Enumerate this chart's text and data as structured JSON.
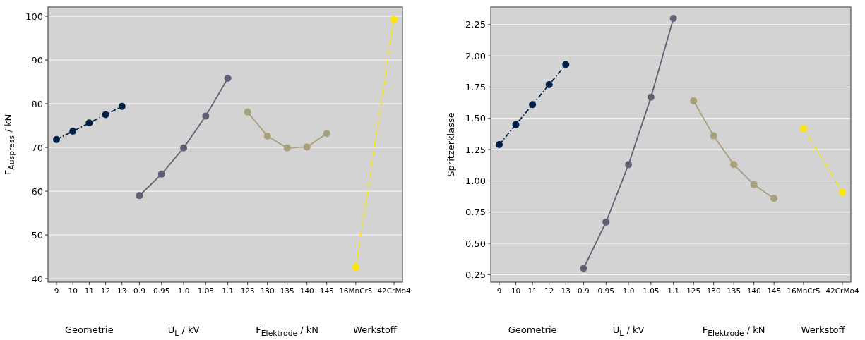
{
  "chart_data": [
    {
      "type": "line",
      "ylabel": "F$_{Auspress}$ / kN",
      "categories": [
        "9",
        "10",
        "11",
        "12",
        "13",
        "0.9",
        "0.95",
        "1.0",
        "1.05",
        "1.1",
        "125",
        "130",
        "135",
        "140",
        "145",
        "16MnCr5",
        "42CrMo4"
      ],
      "series": [
        {
          "color": "#002147",
          "line_style": "dashed",
          "values": [
            71.8,
            73.7,
            75.6,
            77.5,
            79.4,
            null,
            null,
            null,
            null,
            null,
            null,
            null,
            null,
            null,
            null,
            null,
            null
          ]
        },
        {
          "color": "#5f6275",
          "line_style": "solid",
          "values": [
            null,
            null,
            null,
            null,
            null,
            59.0,
            63.9,
            69.9,
            77.2,
            85.8,
            null,
            null,
            null,
            null,
            null,
            null,
            null
          ]
        },
        {
          "color": "#a99f7a",
          "line_style": "solid",
          "values": [
            null,
            null,
            null,
            null,
            null,
            null,
            null,
            null,
            null,
            null,
            78.1,
            72.6,
            69.9,
            70.1,
            73.2,
            null,
            null
          ]
        },
        {
          "color": "#ffe600",
          "line_style": "dashed",
          "values": [
            null,
            null,
            null,
            null,
            null,
            null,
            null,
            null,
            null,
            null,
            null,
            null,
            null,
            null,
            null,
            42.6,
            99.3
          ]
        }
      ],
      "annotations": [
        "Geometrie",
        "U$_{L}$ / kV",
        "F$_{Elektrode}$ / kN",
        "Werkstoff"
      ],
      "ylim": [
        39.2,
        102.1
      ],
      "yticks": [
        40,
        50,
        60,
        70,
        80,
        90,
        100
      ],
      "grid": "y",
      "marker": "circle"
    },
    {
      "type": "line",
      "ylabel": "Spritzerklasse",
      "categories": [
        "9",
        "10",
        "11",
        "12",
        "13",
        "0.9",
        "0.95",
        "1.0",
        "1.05",
        "1.1",
        "125",
        "130",
        "135",
        "140",
        "145",
        "16MnCr5",
        "42CrMo4"
      ],
      "series": [
        {
          "color": "#002147",
          "line_style": "dashed",
          "values": [
            1.29,
            1.45,
            1.61,
            1.77,
            1.93,
            null,
            null,
            null,
            null,
            null,
            null,
            null,
            null,
            null,
            null,
            null,
            null
          ]
        },
        {
          "color": "#5f6275",
          "line_style": "solid",
          "values": [
            null,
            null,
            null,
            null,
            null,
            0.3,
            0.67,
            1.13,
            1.67,
            2.3,
            null,
            null,
            null,
            null,
            null,
            null,
            null
          ]
        },
        {
          "color": "#a99f7a",
          "line_style": "solid",
          "values": [
            null,
            null,
            null,
            null,
            null,
            null,
            null,
            null,
            null,
            null,
            1.64,
            1.36,
            1.13,
            0.97,
            0.86,
            null,
            null
          ]
        },
        {
          "color": "#ffe600",
          "line_style": "dashed",
          "values": [
            null,
            null,
            null,
            null,
            null,
            null,
            null,
            null,
            null,
            null,
            null,
            null,
            null,
            null,
            null,
            1.42,
            0.91
          ]
        }
      ],
      "annotations": [
        "Geometrie",
        "U$_{L}$ / kV",
        "F$_{Elektrode}$ / kN",
        "Werkstoff"
      ],
      "ylim": [
        0.19,
        2.39
      ],
      "yticks": [
        {
          "value": 0.25,
          "label": "0.25"
        },
        {
          "value": 0.5,
          "label": "0.50"
        },
        {
          "value": 0.75,
          "label": "0.75"
        },
        {
          "value": 1,
          "label": "1.00"
        },
        {
          "value": 1.25,
          "label": "1.25"
        },
        {
          "value": 1.5,
          "label": "1.50"
        },
        {
          "value": 1.75,
          "label": "1.75"
        },
        {
          "value": 2,
          "label": "2.00"
        },
        {
          "value": 2.25,
          "label": "2.25"
        }
      ],
      "grid": "y",
      "marker": "circle"
    }
  ]
}
